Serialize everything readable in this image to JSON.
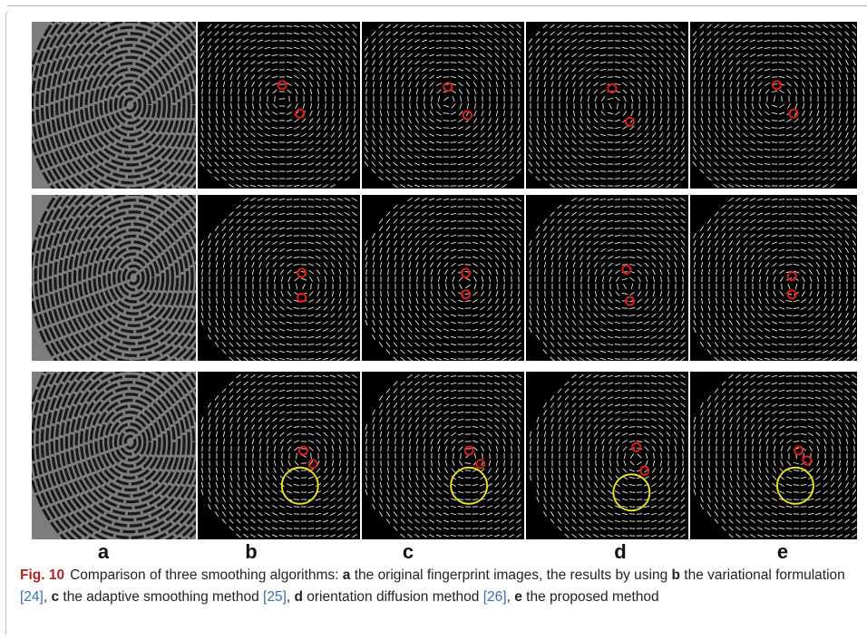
{
  "figure": {
    "column_labels": [
      "a",
      "b",
      "c",
      "d",
      "e"
    ],
    "rows": [
      {
        "singular_points": 2,
        "highlight_circle": false
      },
      {
        "singular_points": 2,
        "highlight_circle": false
      },
      {
        "singular_points": 2,
        "highlight_circle": true
      }
    ],
    "colors": {
      "fingerprint_bg": "#7d7d7d",
      "orientation_bg": "#000000",
      "orientation_lines": "#d8d8d8",
      "singular_point": "#e01b1b",
      "highlight_circle": "#e8e020"
    }
  },
  "caption": {
    "label": "Fig. 10",
    "intro": "Comparison of three smoothing algorithms: ",
    "items": [
      {
        "letter": "a",
        "text": " the original fingerprint images, the results by using ",
        "ref": "",
        "tail": ""
      },
      {
        "letter": "b",
        "text": " the variational formulation ",
        "ref": "[24]",
        "tail": ", "
      },
      {
        "letter": "c",
        "text": " the adaptive smoothing method ",
        "ref": "[25]",
        "tail": ", "
      },
      {
        "letter": "d",
        "text": " orientation diffusion method ",
        "ref": "[26]",
        "tail": ", "
      },
      {
        "letter": "e",
        "text": " the proposed method",
        "ref": "",
        "tail": ""
      }
    ]
  }
}
